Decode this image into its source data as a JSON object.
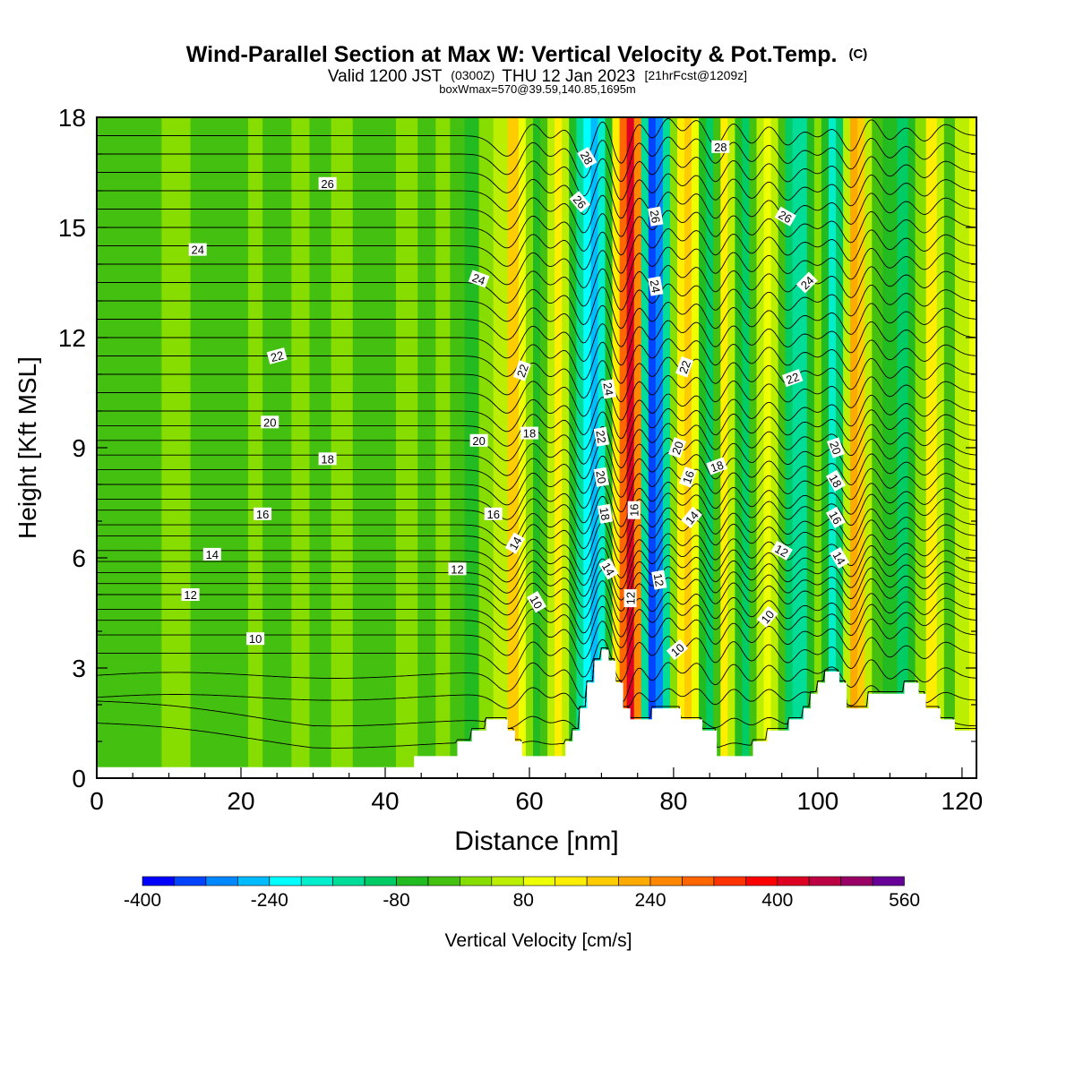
{
  "chart_data": {
    "type": "heatmap",
    "title": "Wind-Parallel Section at Max W: Vertical Velocity & Pot.Temp.",
    "title_mark": "(C)",
    "subtitle_parts": [
      "Valid 1200 JST",
      "(0300Z)",
      "THU 12 Jan 2023",
      "[21hrFcst@1209z]"
    ],
    "subtitle2": "boxWmax=570@39.59,140.85,1695m",
    "xlabel": "Distance [nm]",
    "ylabel": "Height [Kft MSL]",
    "xlim": [
      0,
      122
    ],
    "ylim": [
      0,
      18
    ],
    "xticks": [
      0,
      20,
      40,
      60,
      80,
      100,
      120
    ],
    "yticks": [
      0,
      3,
      6,
      9,
      12,
      15,
      18
    ],
    "colorbar": {
      "label": "Vertical Velocity [cm/s]",
      "boundaries": [
        -400,
        -360,
        -320,
        -280,
        -240,
        -200,
        -160,
        -120,
        -80,
        -40,
        0,
        40,
        80,
        120,
        160,
        200,
        240,
        280,
        320,
        360,
        400,
        440,
        480,
        520,
        560,
        600
      ],
      "colors": [
        "#0000ff",
        "#0044ff",
        "#0088ff",
        "#00bbff",
        "#00ffff",
        "#00eecc",
        "#00dd99",
        "#00cc66",
        "#22bb22",
        "#44c010",
        "#88dd00",
        "#bbee00",
        "#eeff00",
        "#ffee00",
        "#ffcc00",
        "#ffaa00",
        "#ff8800",
        "#ff6600",
        "#ff3300",
        "#ff0000",
        "#dd0022",
        "#bb0044",
        "#990066",
        "#660099"
      ],
      "tick_values": [
        -400,
        -240,
        -80,
        80,
        240,
        400,
        560
      ]
    },
    "w_bands": [
      {
        "x": 0,
        "w": -40
      },
      {
        "x": 2,
        "w": -40
      },
      {
        "x": 5,
        "w": -40
      },
      {
        "x": 8,
        "w": -20
      },
      {
        "x": 10,
        "w": 20
      },
      {
        "x": 12,
        "w": 10
      },
      {
        "x": 14,
        "w": -30
      },
      {
        "x": 17,
        "w": -40
      },
      {
        "x": 20,
        "w": -30
      },
      {
        "x": 22,
        "w": 20
      },
      {
        "x": 24,
        "w": -20
      },
      {
        "x": 26,
        "w": -40
      },
      {
        "x": 28,
        "w": 10
      },
      {
        "x": 31,
        "w": -30
      },
      {
        "x": 34,
        "w": 20
      },
      {
        "x": 37,
        "w": -30
      },
      {
        "x": 40,
        "w": -40
      },
      {
        "x": 43,
        "w": 20
      },
      {
        "x": 46,
        "w": -20
      },
      {
        "x": 48,
        "w": 20
      },
      {
        "x": 50,
        "w": -30
      },
      {
        "x": 52,
        "w": -70
      },
      {
        "x": 54,
        "w": 20
      },
      {
        "x": 56,
        "w": 60
      },
      {
        "x": 58,
        "w": 160
      },
      {
        "x": 59,
        "w": 90
      },
      {
        "x": 60,
        "w": 10
      },
      {
        "x": 61,
        "w": -80
      },
      {
        "x": 62,
        "w": -40
      },
      {
        "x": 63,
        "w": 60
      },
      {
        "x": 64,
        "w": 140
      },
      {
        "x": 65,
        "w": 70
      },
      {
        "x": 66,
        "w": -60
      },
      {
        "x": 67,
        "w": -140
      },
      {
        "x": 68,
        "w": -220
      },
      {
        "x": 69,
        "w": -260
      },
      {
        "x": 70,
        "w": -200
      },
      {
        "x": 71,
        "w": -50
      },
      {
        "x": 72,
        "w": 120
      },
      {
        "x": 73,
        "w": 300
      },
      {
        "x": 74,
        "w": 430
      },
      {
        "x": 75,
        "w": 240
      },
      {
        "x": 76,
        "w": -140
      },
      {
        "x": 77,
        "w": -340
      },
      {
        "x": 78,
        "w": -290
      },
      {
        "x": 79,
        "w": -140
      },
      {
        "x": 80,
        "w": 30
      },
      {
        "x": 81,
        "w": 150
      },
      {
        "x": 82,
        "w": 190
      },
      {
        "x": 83,
        "w": 90
      },
      {
        "x": 84,
        "w": -70
      },
      {
        "x": 85,
        "w": -120
      },
      {
        "x": 86,
        "w": -20
      },
      {
        "x": 87,
        "w": 150
      },
      {
        "x": 88,
        "w": 60
      },
      {
        "x": 89,
        "w": -80
      },
      {
        "x": 90,
        "w": -100
      },
      {
        "x": 91,
        "w": -40
      },
      {
        "x": 92,
        "w": 60
      },
      {
        "x": 93,
        "w": 90
      },
      {
        "x": 94,
        "w": 50
      },
      {
        "x": 95,
        "w": -30
      },
      {
        "x": 96,
        "w": -100
      },
      {
        "x": 97,
        "w": -160
      },
      {
        "x": 98,
        "w": -130
      },
      {
        "x": 99,
        "w": -60
      },
      {
        "x": 100,
        "w": 10
      },
      {
        "x": 101,
        "w": -80
      },
      {
        "x": 102,
        "w": -180
      },
      {
        "x": 103,
        "w": -100
      },
      {
        "x": 104,
        "w": 60
      },
      {
        "x": 105,
        "w": 220
      },
      {
        "x": 106,
        "w": 180
      },
      {
        "x": 107,
        "w": 60
      },
      {
        "x": 108,
        "w": -40
      },
      {
        "x": 110,
        "w": -60
      },
      {
        "x": 112,
        "w": -100
      },
      {
        "x": 113,
        "w": -60
      },
      {
        "x": 114,
        "w": 20
      },
      {
        "x": 116,
        "w": 120
      },
      {
        "x": 117,
        "w": 60
      },
      {
        "x": 118,
        "w": -30
      },
      {
        "x": 120,
        "w": 60
      },
      {
        "x": 122,
        "w": 100
      }
    ],
    "terrain_kft": [
      {
        "x": 0,
        "h": 0.3
      },
      {
        "x": 44,
        "h": 0.3
      },
      {
        "x": 44,
        "h": 0.6
      },
      {
        "x": 50,
        "h": 0.6
      },
      {
        "x": 50,
        "h": 1.0
      },
      {
        "x": 52,
        "h": 1.0
      },
      {
        "x": 52,
        "h": 1.3
      },
      {
        "x": 54,
        "h": 1.3
      },
      {
        "x": 54,
        "h": 1.6
      },
      {
        "x": 57,
        "h": 1.6
      },
      {
        "x": 57,
        "h": 1.3
      },
      {
        "x": 58,
        "h": 1.3
      },
      {
        "x": 58,
        "h": 1.0
      },
      {
        "x": 59,
        "h": 1.0
      },
      {
        "x": 59,
        "h": 0.6
      },
      {
        "x": 65,
        "h": 0.6
      },
      {
        "x": 65,
        "h": 1.0
      },
      {
        "x": 66,
        "h": 1.0
      },
      {
        "x": 66,
        "h": 1.3
      },
      {
        "x": 67,
        "h": 1.3
      },
      {
        "x": 67,
        "h": 1.9
      },
      {
        "x": 68,
        "h": 1.9
      },
      {
        "x": 68,
        "h": 2.6
      },
      {
        "x": 69,
        "h": 2.6
      },
      {
        "x": 69,
        "h": 3.2
      },
      {
        "x": 70,
        "h": 3.2
      },
      {
        "x": 70,
        "h": 3.5
      },
      {
        "x": 71,
        "h": 3.5
      },
      {
        "x": 71,
        "h": 3.2
      },
      {
        "x": 72,
        "h": 3.2
      },
      {
        "x": 72,
        "h": 2.6
      },
      {
        "x": 73,
        "h": 2.6
      },
      {
        "x": 73,
        "h": 1.9
      },
      {
        "x": 74,
        "h": 1.9
      },
      {
        "x": 74,
        "h": 1.6
      },
      {
        "x": 77,
        "h": 1.6
      },
      {
        "x": 77,
        "h": 1.9
      },
      {
        "x": 81,
        "h": 1.9
      },
      {
        "x": 81,
        "h": 1.6
      },
      {
        "x": 84,
        "h": 1.6
      },
      {
        "x": 84,
        "h": 1.3
      },
      {
        "x": 86,
        "h": 1.3
      },
      {
        "x": 86,
        "h": 0.6
      },
      {
        "x": 91,
        "h": 0.6
      },
      {
        "x": 91,
        "h": 1.0
      },
      {
        "x": 93,
        "h": 1.0
      },
      {
        "x": 93,
        "h": 1.3
      },
      {
        "x": 96,
        "h": 1.3
      },
      {
        "x": 96,
        "h": 1.6
      },
      {
        "x": 98,
        "h": 1.6
      },
      {
        "x": 98,
        "h": 1.9
      },
      {
        "x": 99,
        "h": 1.9
      },
      {
        "x": 99,
        "h": 2.3
      },
      {
        "x": 100,
        "h": 2.3
      },
      {
        "x": 100,
        "h": 2.6
      },
      {
        "x": 101,
        "h": 2.6
      },
      {
        "x": 101,
        "h": 2.9
      },
      {
        "x": 103,
        "h": 2.9
      },
      {
        "x": 103,
        "h": 2.6
      },
      {
        "x": 104,
        "h": 2.6
      },
      {
        "x": 104,
        "h": 1.9
      },
      {
        "x": 107,
        "h": 1.9
      },
      {
        "x": 107,
        "h": 2.3
      },
      {
        "x": 112,
        "h": 2.3
      },
      {
        "x": 112,
        "h": 2.6
      },
      {
        "x": 114,
        "h": 2.6
      },
      {
        "x": 114,
        "h": 2.3
      },
      {
        "x": 115,
        "h": 2.3
      },
      {
        "x": 115,
        "h": 1.9
      },
      {
        "x": 117,
        "h": 1.9
      },
      {
        "x": 117,
        "h": 1.6
      },
      {
        "x": 119,
        "h": 1.6
      },
      {
        "x": 119,
        "h": 1.3
      },
      {
        "x": 122,
        "h": 1.3
      }
    ],
    "isentrope_levels_kft": [
      0.9,
      1.5,
      2.2,
      2.8,
      3.4,
      3.9,
      4.3,
      4.6,
      5.0,
      5.3,
      5.6,
      5.9,
      6.2,
      6.6,
      6.9,
      7.3,
      7.6,
      8.0,
      8.4,
      8.8,
      9.2,
      9.6,
      10.0,
      10.5,
      11.0,
      11.5,
      12.0,
      12.5,
      13.0,
      13.5,
      14.0,
      14.5,
      15.0,
      15.5,
      16.0,
      16.5,
      17.0,
      17.5
    ],
    "wave_bands": [
      {
        "x": 59,
        "amp": 1.3,
        "width": 3
      },
      {
        "x": 64,
        "amp": 1.0,
        "width": 2.5
      },
      {
        "x": 69,
        "amp": 2.0,
        "width": 2.5
      },
      {
        "x": 74,
        "amp": 2.6,
        "width": 2.5
      },
      {
        "x": 78,
        "amp": 2.2,
        "width": 2.5
      },
      {
        "x": 82,
        "amp": 1.4,
        "width": 2.5
      },
      {
        "x": 87,
        "amp": 1.2,
        "width": 2.5
      },
      {
        "x": 92,
        "amp": 1.0,
        "width": 2.5
      },
      {
        "x": 97,
        "amp": 1.0,
        "width": 2.5
      },
      {
        "x": 101,
        "amp": 0.9,
        "width": 2.5
      },
      {
        "x": 106,
        "amp": 1.4,
        "width": 2.5
      },
      {
        "x": 111,
        "amp": 0.8,
        "width": 2.5
      },
      {
        "x": 116,
        "amp": 0.7,
        "width": 2.5
      }
    ],
    "contour_labels": [
      {
        "text": "24",
        "x": 14,
        "y": 14.4,
        "rot": 0
      },
      {
        "text": "26",
        "x": 32,
        "y": 16.2,
        "rot": 0
      },
      {
        "text": "22",
        "x": 25,
        "y": 11.5,
        "rot": -15
      },
      {
        "text": "20",
        "x": 24,
        "y": 9.7,
        "rot": 0
      },
      {
        "text": "18",
        "x": 32,
        "y": 8.7,
        "rot": 0
      },
      {
        "text": "16",
        "x": 23,
        "y": 7.2,
        "rot": 0
      },
      {
        "text": "14",
        "x": 16,
        "y": 6.1,
        "rot": 0
      },
      {
        "text": "12",
        "x": 13,
        "y": 5.0,
        "rot": 0
      },
      {
        "text": "10",
        "x": 22,
        "y": 3.8,
        "rot": 0
      },
      {
        "text": "24",
        "x": 53,
        "y": 13.6,
        "rot": 20
      },
      {
        "text": "20",
        "x": 53,
        "y": 9.2,
        "rot": 0
      },
      {
        "text": "16",
        "x": 55,
        "y": 7.2,
        "rot": 0
      },
      {
        "text": "12",
        "x": 50,
        "y": 5.7,
        "rot": 0
      },
      {
        "text": "22",
        "x": 59,
        "y": 11.1,
        "rot": -70
      },
      {
        "text": "18",
        "x": 60,
        "y": 9.4,
        "rot": 0
      },
      {
        "text": "14",
        "x": 58,
        "y": 6.4,
        "rot": -60
      },
      {
        "text": "10",
        "x": 61,
        "y": 4.8,
        "rot": 60
      },
      {
        "text": "28",
        "x": 68,
        "y": 16.9,
        "rot": 60
      },
      {
        "text": "26",
        "x": 67,
        "y": 15.7,
        "rot": 50
      },
      {
        "text": "24",
        "x": 71,
        "y": 10.6,
        "rot": 80
      },
      {
        "text": "22",
        "x": 70,
        "y": 9.3,
        "rot": 80
      },
      {
        "text": "20",
        "x": 70,
        "y": 8.2,
        "rot": 80
      },
      {
        "text": "18",
        "x": 70.5,
        "y": 7.2,
        "rot": 80
      },
      {
        "text": "14",
        "x": 71,
        "y": 5.7,
        "rot": 60
      },
      {
        "text": "16",
        "x": 74.5,
        "y": 7.3,
        "rot": -90
      },
      {
        "text": "12",
        "x": 74,
        "y": 4.9,
        "rot": -90
      },
      {
        "text": "26",
        "x": 77.5,
        "y": 15.3,
        "rot": 80
      },
      {
        "text": "24",
        "x": 77.5,
        "y": 13.4,
        "rot": 80
      },
      {
        "text": "12",
        "x": 78,
        "y": 5.4,
        "rot": 80
      },
      {
        "text": "10",
        "x": 80.5,
        "y": 3.5,
        "rot": -40
      },
      {
        "text": "22",
        "x": 81.5,
        "y": 11.2,
        "rot": -70
      },
      {
        "text": "20",
        "x": 80.5,
        "y": 9.0,
        "rot": -70
      },
      {
        "text": "16",
        "x": 82,
        "y": 8.2,
        "rot": -70
      },
      {
        "text": "18",
        "x": 86,
        "y": 8.5,
        "rot": -20
      },
      {
        "text": "14",
        "x": 82.5,
        "y": 7.1,
        "rot": -50
      },
      {
        "text": "28",
        "x": 86.5,
        "y": 17.2,
        "rot": 0
      },
      {
        "text": "26",
        "x": 95.5,
        "y": 15.3,
        "rot": 30
      },
      {
        "text": "24",
        "x": 98.5,
        "y": 13.5,
        "rot": -45
      },
      {
        "text": "22",
        "x": 96.5,
        "y": 10.9,
        "rot": -20
      },
      {
        "text": "20",
        "x": 102.5,
        "y": 9.0,
        "rot": 70
      },
      {
        "text": "18",
        "x": 102.5,
        "y": 8.1,
        "rot": 60
      },
      {
        "text": "16",
        "x": 102.5,
        "y": 7.1,
        "rot": 60
      },
      {
        "text": "14",
        "x": 103,
        "y": 6.0,
        "rot": 60
      },
      {
        "text": "12",
        "x": 95,
        "y": 6.2,
        "rot": 30
      },
      {
        "text": "10",
        "x": 93,
        "y": 4.4,
        "rot": -50
      }
    ],
    "grid": false,
    "legend": "bottom"
  }
}
